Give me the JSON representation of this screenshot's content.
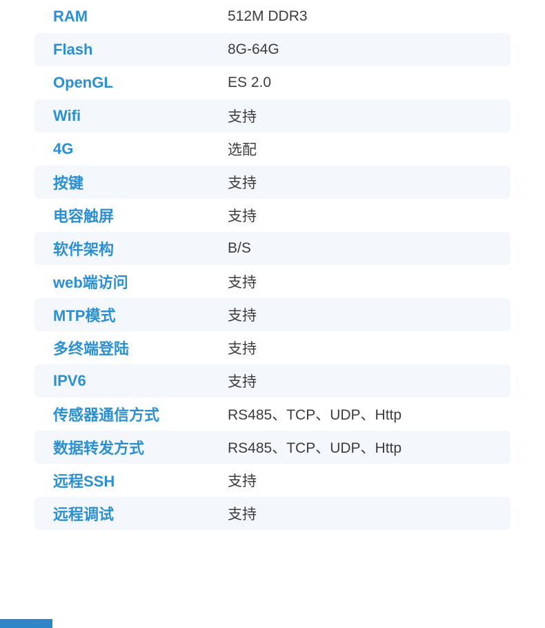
{
  "colors": {
    "label_blue": "#2B90D2",
    "value_gray": "#3C3C3C",
    "row_alt_bg": "#F4F8FC",
    "footer_bar_blue": "#2E86C8",
    "page_bg": "#FFFFFF"
  },
  "spec_table": {
    "rows": [
      {
        "label": "RAM",
        "value": "512M DDR3"
      },
      {
        "label": "Flash",
        "value": "8G-64G"
      },
      {
        "label": "OpenGL",
        "value": "ES 2.0"
      },
      {
        "label": "Wifi",
        "value": "支持"
      },
      {
        "label": "4G",
        "value": "选配"
      },
      {
        "label": "按键",
        "value": "支持"
      },
      {
        "label": "电容触屏",
        "value": "支持"
      },
      {
        "label": "软件架构",
        "value": "B/S"
      },
      {
        "label": "web端访问",
        "value": "支持"
      },
      {
        "label": "MTP模式",
        "value": "支持"
      },
      {
        "label": "多终端登陆",
        "value": "支持"
      },
      {
        "label": "IPV6",
        "value": "支持"
      },
      {
        "label": "传感器通信方式",
        "value": "RS485、TCP、UDP、Http"
      },
      {
        "label": "数据转发方式",
        "value": "RS485、TCP、UDP、Http"
      },
      {
        "label": "远程SSH",
        "value": "支持"
      },
      {
        "label": "远程调试",
        "value": "支持"
      }
    ]
  }
}
